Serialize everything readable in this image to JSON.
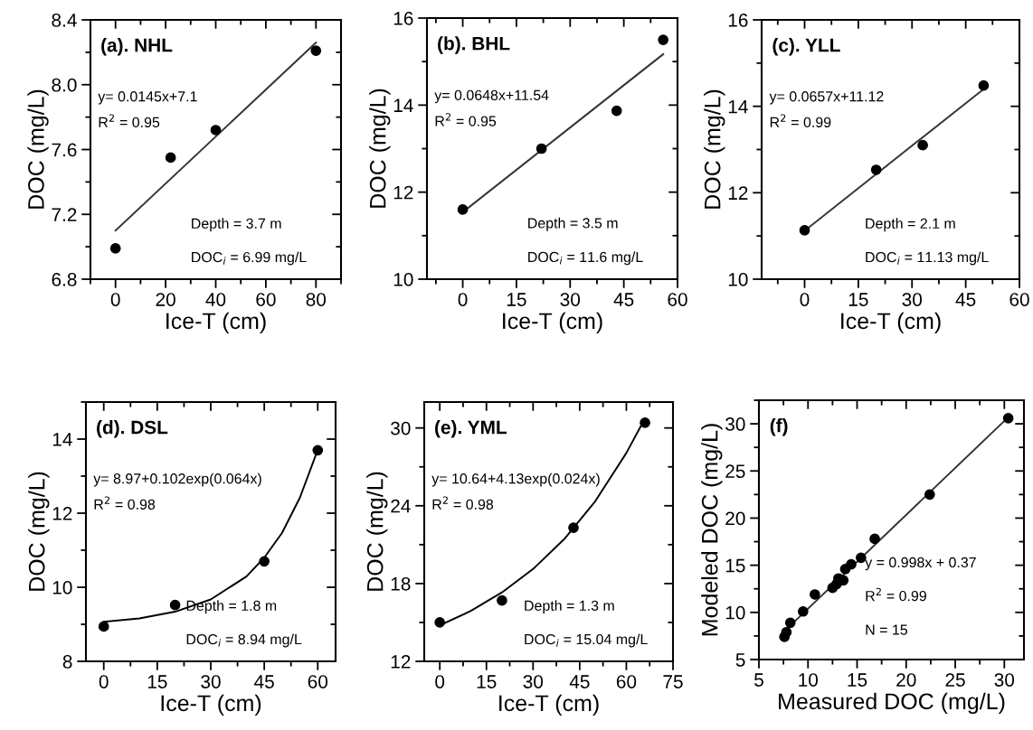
{
  "chart_data": [
    {
      "type": "scatter",
      "title": "(a). NHL",
      "xlabel": "Ice-T (cm)",
      "ylabel": "DOC (mg/L)",
      "xlim": [
        -10,
        90
      ],
      "xticks": [
        0,
        20,
        40,
        60,
        80
      ],
      "ylim": [
        6.8,
        8.4
      ],
      "yticks": [
        6.8,
        7.2,
        7.6,
        {
          "value": 8.0,
          "label": "8.0"
        },
        8.4
      ],
      "series": [
        {
          "marker": "circle",
          "color": "#000000",
          "x": [
            0,
            22,
            40,
            80
          ],
          "values": [
            6.99,
            7.55,
            7.72,
            8.21
          ]
        },
        {
          "type": "line",
          "color": "#333333",
          "x": [
            0,
            80
          ],
          "values": [
            7.1,
            8.26
          ]
        }
      ],
      "annotations": [
        "y= 0.0145x+7.1",
        "R$^{2}$ = 0.95",
        "Depth = 3.7 m",
        "DOC$_{i}$ = 6.99 mg/L"
      ]
    },
    {
      "type": "scatter",
      "title": "(b). BHL",
      "xlabel": "Ice-T (cm)",
      "ylabel": "DOC (mg/L)",
      "xlim": [
        -10,
        60
      ],
      "xticks": [
        0,
        15,
        30,
        45,
        60
      ],
      "ylim": [
        10,
        16
      ],
      "yticks": [
        10,
        12,
        14,
        16
      ],
      "series": [
        {
          "marker": "circle",
          "color": "#000000",
          "x": [
            0,
            22,
            43,
            56
          ],
          "values": [
            11.6,
            13.0,
            13.87,
            15.5
          ]
        },
        {
          "type": "line",
          "color": "#333333",
          "x": [
            0,
            56
          ],
          "values": [
            11.54,
            15.17
          ]
        }
      ],
      "annotations": [
        "y= 0.0648x+11.54",
        "R$^{2}$ = 0.95",
        "Depth = 3.5 m",
        "DOC$_{i}$ = 11.6 mg/L"
      ]
    },
    {
      "type": "scatter",
      "title": "(c). YLL",
      "xlabel": "Ice-T (cm)",
      "ylabel": "DOC (mg/L)",
      "xlim": [
        -12,
        60
      ],
      "xticks": [
        0,
        15,
        30,
        45,
        60
      ],
      "ylim": [
        10,
        16
      ],
      "yticks": [
        10,
        12,
        14,
        16
      ],
      "series": [
        {
          "marker": "circle",
          "color": "#000000",
          "x": [
            0,
            20,
            33,
            50
          ],
          "values": [
            11.13,
            12.53,
            13.1,
            14.48
          ]
        },
        {
          "type": "line",
          "color": "#333333",
          "x": [
            0,
            50
          ],
          "values": [
            11.12,
            14.4
          ]
        }
      ],
      "annotations": [
        "y= 0.0657x+11.12",
        "R$^{2}$ = 0.99",
        "Depth = 2.1 m",
        "DOC$_{i}$ = 11.13 mg/L"
      ]
    },
    {
      "type": "scatter",
      "title": "(d). DSL",
      "xlabel": "Ice-T (cm)",
      "ylabel": "DOC (mg/L)",
      "xlim": [
        -5,
        65
      ],
      "xticks": [
        0,
        15,
        30,
        45,
        60
      ],
      "ylim": [
        8,
        15
      ],
      "yticks": [
        8,
        10,
        12,
        14
      ],
      "series": [
        {
          "marker": "circle",
          "color": "#000000",
          "x": [
            0,
            20,
            45,
            60
          ],
          "values": [
            8.94,
            9.52,
            10.7,
            13.7
          ]
        },
        {
          "type": "line",
          "color": "#000000",
          "x": [
            0,
            10,
            20,
            30,
            40,
            45,
            50,
            55,
            60
          ],
          "values": [
            9.07,
            9.16,
            9.34,
            9.67,
            10.29,
            10.8,
            11.47,
            12.42,
            13.71
          ]
        }
      ],
      "annotations": [
        "y= 8.97+0.102exp(0.064x)",
        "R$^{2}$ = 0.98",
        "Depth = 1.8 m",
        "DOC$_{i}$ = 8.94 mg/L"
      ]
    },
    {
      "type": "scatter",
      "title": "(e). YML",
      "xlabel": "Ice-T (cm)",
      "ylabel": "DOC (mg/L)",
      "xlim": [
        -5,
        75
      ],
      "xticks": [
        0,
        15,
        30,
        45,
        60,
        75
      ],
      "ylim": [
        12,
        32
      ],
      "yticks": [
        12,
        18,
        24,
        30
      ],
      "series": [
        {
          "marker": "circle",
          "color": "#000000",
          "x": [
            0,
            20,
            43,
            66
          ],
          "values": [
            15.0,
            16.7,
            22.3,
            30.4
          ]
        },
        {
          "type": "line",
          "color": "#000000",
          "x": [
            0,
            10,
            20,
            30,
            40,
            50,
            60,
            66
          ],
          "values": [
            14.77,
            15.89,
            17.32,
            19.12,
            21.42,
            24.35,
            28.07,
            30.74
          ]
        }
      ],
      "annotations": [
        "y= 10.64+4.13exp(0.024x)",
        "R$^{2}$ = 0.98",
        "Depth = 1.3 m",
        "DOC$_{i}$ = 15.04 mg/L"
      ]
    },
    {
      "type": "scatter",
      "title": "(f)",
      "xlabel": "Measured DOC (mg/L)",
      "ylabel": "Modeled DOC (mg/L)",
      "xlim": [
        5,
        32
      ],
      "xticks": [
        5,
        10,
        15,
        20,
        25,
        30
      ],
      "ylim": [
        5,
        32.5
      ],
      "yticks": [
        5,
        10,
        15,
        20,
        25,
        30
      ],
      "series": [
        {
          "marker": "circle",
          "color": "#000000",
          "x": [
            7.6,
            7.8,
            8.2,
            9.5,
            10.7,
            12.5,
            12.9,
            13.1,
            13.6,
            13.8,
            14.4,
            15.4,
            16.8,
            22.4,
            30.4
          ],
          "values": [
            7.4,
            7.9,
            8.9,
            10.1,
            11.9,
            12.6,
            13.0,
            13.6,
            13.4,
            14.6,
            15.1,
            15.8,
            17.8,
            22.5,
            30.6
          ]
        },
        {
          "type": "line",
          "color": "#333333",
          "x": [
            7.6,
            30.4
          ],
          "values": [
            8.0,
            30.7
          ]
        }
      ],
      "annotations": [
        "y = 0.998x + 0.37",
        "R$^{2}$ = 0.99",
        "N = 15"
      ]
    }
  ]
}
